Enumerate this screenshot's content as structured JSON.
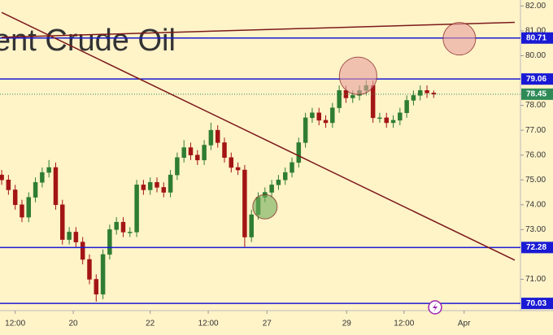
{
  "chart_data": {
    "type": "candlestick",
    "watermark": "ent Crude Oil",
    "xlim": [
      -0.25,
      76.85
    ],
    "ylim": [
      69.74,
      82.24
    ],
    "yticks": [
      {
        "value": 82,
        "label": "82.00"
      },
      {
        "value": 81,
        "label": "81.00"
      },
      {
        "value": 80,
        "label": "80.00"
      },
      {
        "value": 78,
        "label": "78.00"
      },
      {
        "value": 77,
        "label": "77.00"
      },
      {
        "value": 76,
        "label": "76.00"
      },
      {
        "value": 75,
        "label": "75.00"
      },
      {
        "value": 74,
        "label": "74.00"
      },
      {
        "value": 73,
        "label": "73.00"
      },
      {
        "value": 71,
        "label": "71.00"
      }
    ],
    "xticks": [
      {
        "value": 2,
        "label": "12:00"
      },
      {
        "value": 10.6,
        "label": "20"
      },
      {
        "value": 22,
        "label": "22"
      },
      {
        "value": 30.6,
        "label": "12:00"
      },
      {
        "value": 39.3,
        "label": "27"
      },
      {
        "value": 51.1,
        "label": "29"
      },
      {
        "value": 59.6,
        "label": "12:00"
      },
      {
        "value": 68.5,
        "label": "Apr"
      }
    ],
    "up_color": "#2e7d32",
    "down_color": "#a31515",
    "open": [
      75.2,
      75.0,
      74.6,
      74.0,
      73.5,
      74.3,
      74.9,
      75.3,
      75.5,
      74.0,
      72.6,
      72.9,
      72.5,
      71.8,
      71.0,
      70.4,
      72.0,
      73.0,
      73.3,
      72.9,
      72.9,
      74.8,
      74.6,
      74.9,
      74.7,
      74.5,
      75.2,
      75.9,
      76.3,
      76.0,
      75.8,
      76.4,
      77.0,
      76.5,
      75.9,
      75.5,
      75.4,
      72.7,
      73.6,
      74.3,
      74.5,
      74.8,
      75.0,
      75.3,
      75.7,
      76.5,
      77.5,
      77.7,
      77.4,
      77.3,
      77.9,
      78.6,
      78.3,
      78.4,
      78.6,
      78.8,
      77.5,
      77.5,
      77.3,
      77.4,
      77.7,
      78.2,
      78.4,
      78.6,
      78.5
    ],
    "high": [
      75.4,
      75.2,
      74.8,
      74.2,
      74.5,
      75.1,
      75.5,
      75.8,
      75.7,
      74.2,
      73.1,
      73.1,
      72.7,
      72.0,
      71.2,
      72.2,
      73.2,
      73.5,
      73.5,
      73.1,
      75.0,
      75.0,
      75.1,
      75.1,
      74.9,
      75.4,
      76.1,
      76.6,
      76.5,
      76.2,
      76.6,
      77.3,
      77.2,
      76.7,
      76.1,
      75.7,
      75.6,
      73.8,
      74.5,
      74.7,
      75.0,
      75.2,
      75.5,
      75.9,
      76.7,
      77.7,
      77.9,
      77.9,
      77.6,
      78.1,
      78.8,
      78.8,
      78.6,
      78.8,
      79.0,
      79.0,
      77.7,
      77.7,
      77.6,
      77.9,
      78.4,
      78.6,
      78.8,
      78.8,
      78.6
    ],
    "low": [
      74.8,
      74.4,
      73.8,
      73.3,
      73.3,
      74.1,
      74.7,
      75.1,
      73.8,
      72.4,
      72.4,
      72.3,
      71.6,
      70.8,
      70.1,
      70.2,
      71.8,
      72.8,
      72.7,
      72.7,
      72.7,
      74.4,
      74.4,
      74.5,
      74.3,
      74.3,
      75.0,
      75.7,
      75.8,
      75.6,
      75.6,
      76.2,
      76.3,
      75.7,
      75.3,
      75.2,
      72.3,
      72.5,
      73.4,
      74.1,
      74.3,
      74.6,
      74.8,
      75.1,
      75.5,
      76.3,
      77.3,
      77.2,
      77.1,
      77.1,
      77.7,
      78.1,
      78.1,
      78.2,
      78.4,
      77.3,
      77.3,
      77.1,
      77.1,
      77.2,
      77.5,
      78.0,
      78.2,
      78.3,
      78.3
    ],
    "close": [
      75.0,
      74.6,
      74.0,
      73.5,
      74.3,
      74.9,
      75.3,
      75.5,
      74.0,
      72.6,
      72.9,
      72.5,
      71.8,
      71.0,
      70.4,
      72.0,
      73.0,
      73.3,
      72.9,
      72.9,
      74.8,
      74.6,
      74.9,
      74.7,
      74.5,
      75.2,
      75.9,
      76.3,
      76.0,
      75.8,
      76.4,
      77.0,
      76.5,
      75.9,
      75.5,
      75.4,
      72.7,
      73.6,
      74.3,
      74.5,
      74.8,
      75.0,
      75.3,
      75.7,
      76.5,
      77.5,
      77.7,
      77.4,
      77.3,
      77.9,
      78.6,
      78.3,
      78.4,
      78.6,
      78.8,
      77.5,
      77.5,
      77.3,
      77.4,
      77.7,
      78.2,
      78.4,
      78.6,
      78.5,
      78.45
    ],
    "levels": [
      {
        "value": 80.71,
        "color": "#1a1ad4",
        "dash": false
      },
      {
        "value": 79.06,
        "color": "#1a1ad4",
        "dash": false
      },
      {
        "value": 78.45,
        "color": "#2e8b57",
        "dash": true
      },
      {
        "value": 72.28,
        "color": "#1a1ad4",
        "dash": false
      },
      {
        "value": 70.03,
        "color": "#1a1ad4",
        "dash": false
      }
    ],
    "trend_lines": [
      {
        "x": [
          0,
          76
        ],
        "y": [
          81.74,
          71.77
        ],
        "color": "#7b1a1a"
      },
      {
        "x": [
          0,
          76
        ],
        "y": [
          80.74,
          81.34
        ],
        "color": "#7b1a1a"
      }
    ],
    "highlights": [
      {
        "x": 52.8,
        "y": 79.19,
        "color": "#e8a0a0"
      },
      {
        "x": 67.8,
        "y": 80.68,
        "color": "#e8a0a0"
      },
      {
        "x": 39.0,
        "y": 73.92,
        "color": "#6fae5a"
      }
    ]
  }
}
